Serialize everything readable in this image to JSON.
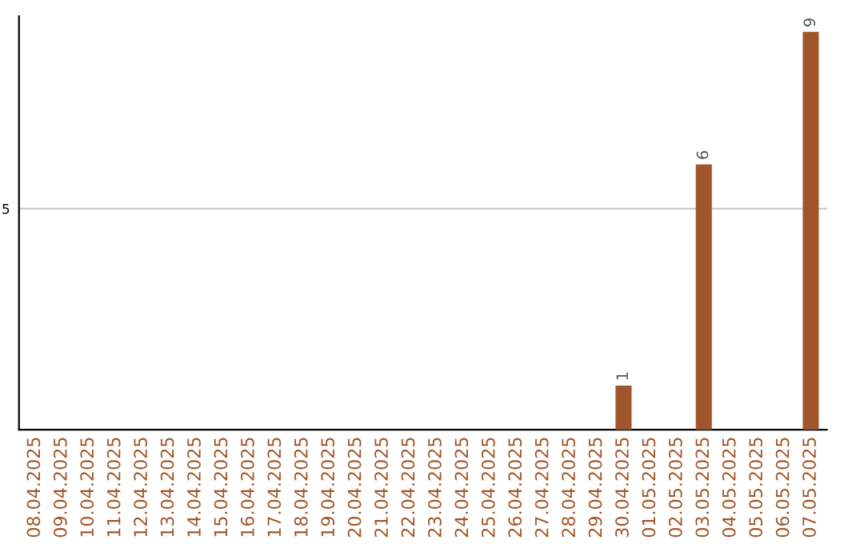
{
  "chart_data": {
    "type": "bar",
    "categories": [
      "08.04.2025",
      "09.04.2025",
      "10.04.2025",
      "11.04.2025",
      "12.04.2025",
      "13.04.2025",
      "14.04.2025",
      "15.04.2025",
      "16.04.2025",
      "17.04.2025",
      "18.04.2025",
      "19.04.2025",
      "20.04.2025",
      "21.04.2025",
      "22.04.2025",
      "23.04.2025",
      "24.04.2025",
      "25.04.2025",
      "26.04.2025",
      "27.04.2025",
      "28.04.2025",
      "29.04.2025",
      "30.04.2025",
      "01.05.2025",
      "02.05.2025",
      "03.05.2025",
      "04.05.2025",
      "05.05.2025",
      "06.05.2025",
      "07.05.2025"
    ],
    "values": [
      null,
      null,
      null,
      null,
      null,
      null,
      null,
      null,
      null,
      null,
      null,
      null,
      null,
      null,
      null,
      null,
      null,
      null,
      null,
      null,
      null,
      null,
      1,
      null,
      null,
      6,
      null,
      null,
      null,
      9
    ],
    "data_labels": true,
    "color": "#a0562a",
    "ylim": [
      0,
      9.35
    ],
    "yticks": [
      5
    ],
    "grid": "y"
  }
}
